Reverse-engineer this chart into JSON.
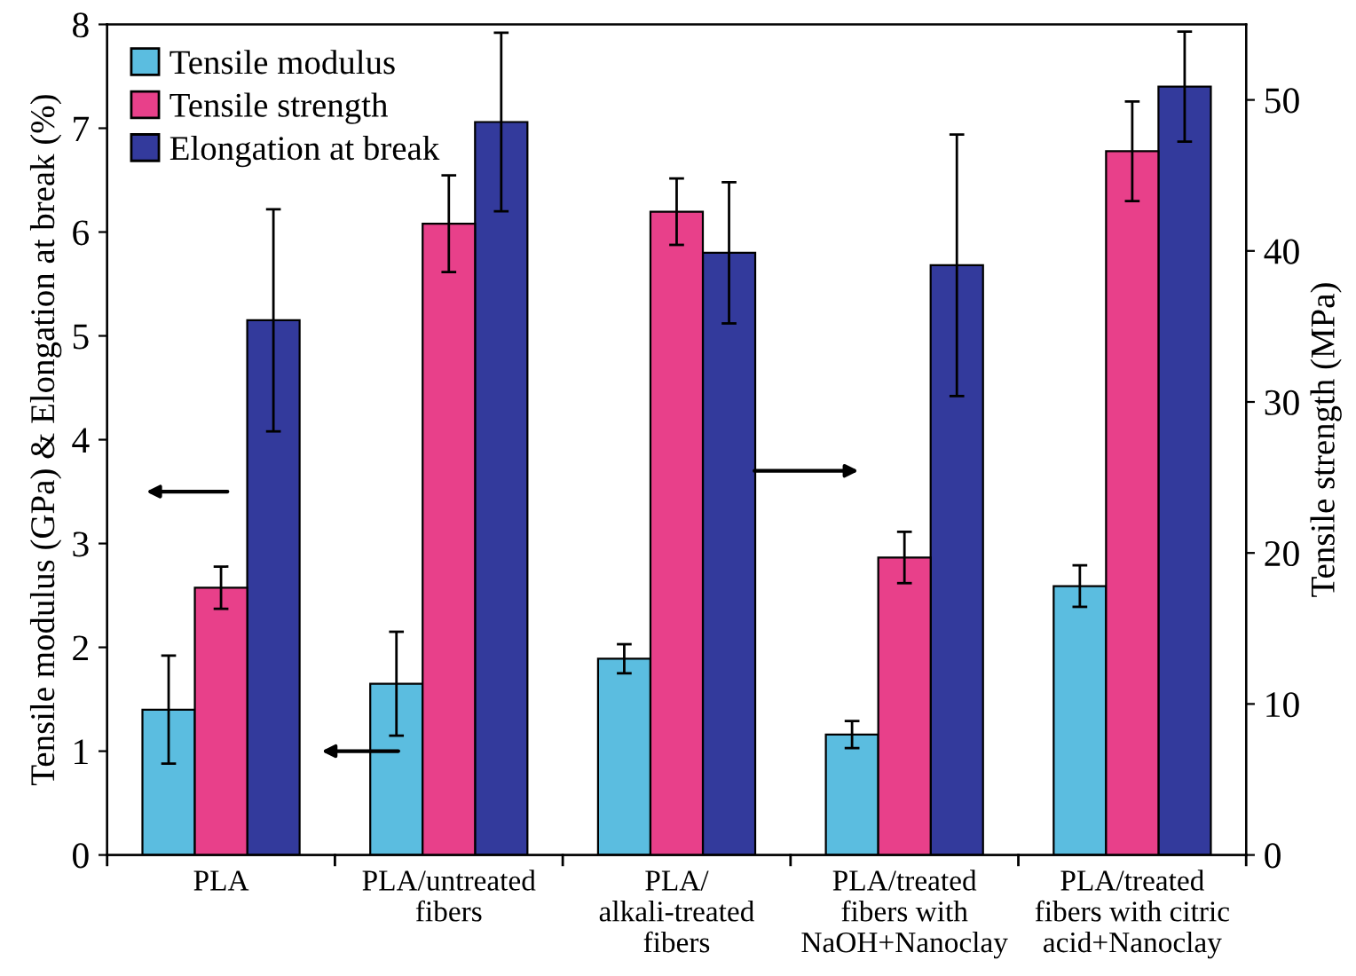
{
  "chart_data": {
    "type": "bar",
    "ylabel": "Tensile modulus (GPa) & Elongation at break (%)",
    "y2label": "Tensile strength (MPa)",
    "categories": [
      "PLA",
      "PLA/untreated\nfibers",
      "PLA/\nalkali-treated\nfibers",
      "PLA/treated\nfibers with\nNaOH+Nanoclay",
      "PLA/treated\nfibers with citric\nacid+Nanoclay"
    ],
    "series": [
      {
        "name": "Tensile modulus",
        "color": "#5bbde0",
        "values": [
          1.4,
          1.65,
          1.89,
          1.16,
          2.59
        ],
        "errors": [
          0.52,
          0.5,
          0.14,
          0.13,
          0.2
        ]
      },
      {
        "name": "Tensile strength",
        "color": "#e8408a",
        "axis": "y2",
        "values": [
          17.7,
          41.8,
          42.6,
          19.7,
          46.6
        ],
        "errors": [
          1.4,
          3.2,
          2.2,
          1.7,
          3.3
        ]
      },
      {
        "name": "Elongation at break",
        "color": "#333a9c",
        "values": [
          5.15,
          7.06,
          5.8,
          5.68,
          7.4
        ],
        "errors": [
          1.07,
          0.86,
          0.68,
          1.26,
          0.53
        ]
      }
    ],
    "ylim": [
      0,
      8
    ],
    "yticks": [
      0,
      1,
      2,
      3,
      4,
      5,
      6,
      7,
      8
    ],
    "y2lim": [
      0,
      55
    ],
    "y2ticks": [
      0,
      10,
      20,
      30,
      40,
      50
    ],
    "legend": "top left",
    "grid": false
  }
}
